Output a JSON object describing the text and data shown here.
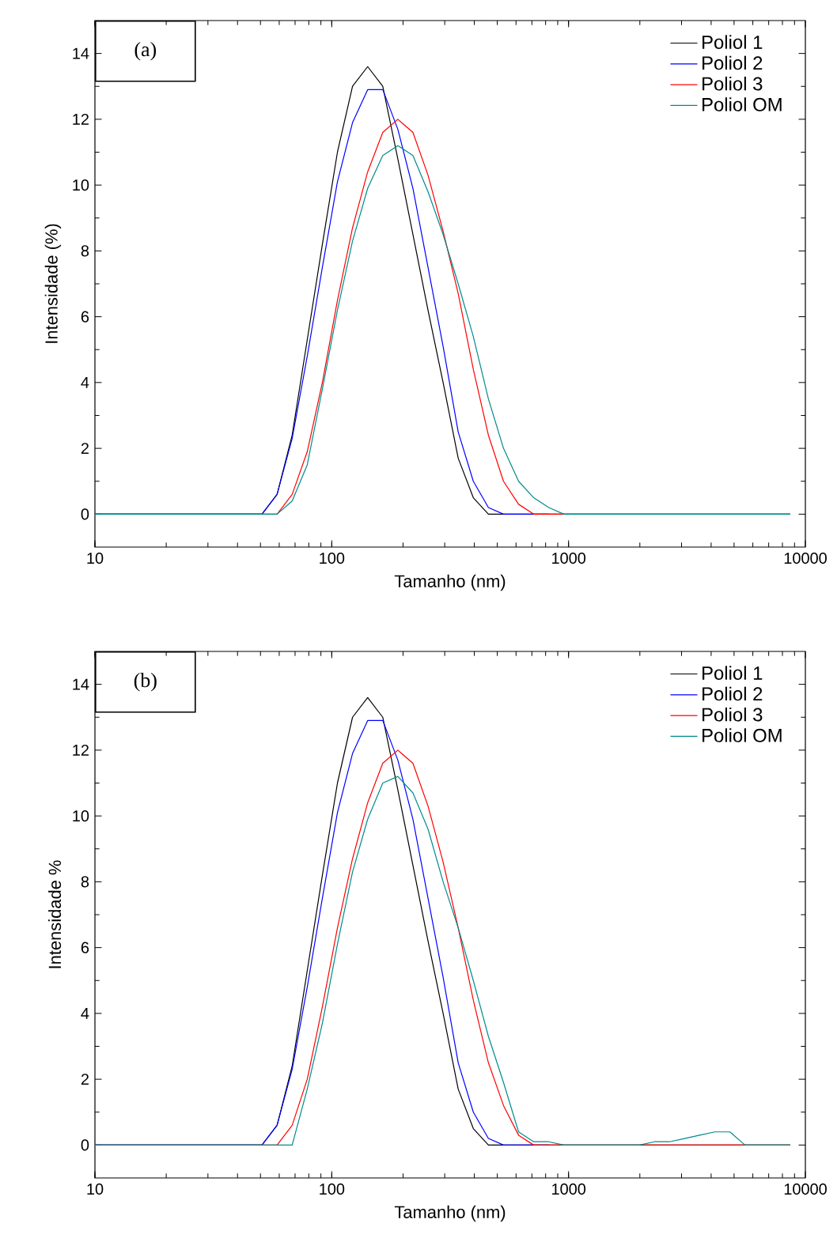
{
  "chart_data": [
    {
      "type": "line",
      "xlabel": "Tamanho (nm)",
      "ylabel": "Intensidade (%)",
      "annotations": [
        "(a)"
      ],
      "log": "x",
      "legend": "top right",
      "line_style": "solid",
      "xlim": [
        10,
        10000
      ],
      "xticks": [
        10,
        100,
        1000,
        10000
      ],
      "ylim": [
        -1,
        15
      ],
      "yticks": [
        0,
        2,
        4,
        6,
        8,
        10,
        12,
        14
      ],
      "x": [
        10,
        50.75,
        58.77,
        68.06,
        78.82,
        91.28,
        105.7,
        122.4,
        141.8,
        164.2,
        190.1,
        220.2,
        255,
        295.3,
        342,
        396.1,
        458.7,
        531.2,
        615.1,
        712.4,
        825,
        955.4,
        8635
      ],
      "series": [
        {
          "name": "Poliol 1",
          "color": "#000000",
          "values": [
            0,
            0,
            0.6,
            2.4,
            5.3,
            8.2,
            11.0,
            13.0,
            13.6,
            13.0,
            10.8,
            8.5,
            6.2,
            4.0,
            1.7,
            0.5,
            0,
            0,
            0,
            0,
            0,
            0,
            0
          ]
        },
        {
          "name": "Poliol 2",
          "color": "#0000ff",
          "values": [
            0,
            0,
            0.6,
            2.3,
            4.8,
            7.5,
            10.1,
            11.9,
            12.9,
            12.9,
            11.7,
            9.9,
            7.5,
            5.1,
            2.5,
            1.0,
            0.2,
            0,
            0,
            0,
            0,
            null,
            null
          ]
        },
        {
          "name": "Poliol 3",
          "color": "#ff0000",
          "values": [
            0,
            0,
            0,
            0.6,
            1.9,
            4.0,
            6.5,
            8.7,
            10.4,
            11.6,
            12.0,
            11.6,
            10.3,
            8.6,
            6.7,
            4.4,
            2.4,
            1.0,
            0.3,
            0,
            0,
            0,
            0
          ]
        },
        {
          "name": "Poliol OM",
          "color": "#008b8b",
          "values": [
            0,
            0,
            0,
            0.4,
            1.5,
            3.8,
            6.2,
            8.3,
            9.9,
            10.9,
            11.2,
            10.9,
            9.8,
            8.5,
            7.0,
            5.4,
            3.5,
            2.0,
            1.0,
            0.5,
            0.2,
            0,
            0
          ]
        }
      ]
    },
    {
      "type": "line",
      "xlabel": "Tamanho (nm)",
      "ylabel": "Intensidade %",
      "annotations": [
        "(b)"
      ],
      "log": "x",
      "legend": "top right",
      "line_style": "solid",
      "xlim": [
        10,
        10000
      ],
      "xticks": [
        10,
        100,
        1000,
        10000
      ],
      "ylim": [
        -1,
        15
      ],
      "yticks": [
        0,
        2,
        4,
        6,
        8,
        10,
        12,
        14
      ],
      "x": [
        10,
        50.75,
        58.77,
        68.06,
        78.82,
        91.28,
        105.7,
        122.4,
        141.8,
        164.2,
        190.1,
        220.2,
        255,
        295.3,
        342,
        396.1,
        458.7,
        531.2,
        615.1,
        712.4,
        825,
        955.4,
        1106,
        1281,
        1484,
        1718,
        1990,
        2305,
        2669,
        3091,
        3580,
        4145,
        4801,
        5560,
        8635
      ],
      "series": [
        {
          "name": "Poliol 1",
          "color": "#000000",
          "values": [
            0,
            0,
            0.6,
            2.4,
            5.3,
            8.2,
            11.0,
            13.0,
            13.6,
            13.0,
            10.8,
            8.5,
            6.2,
            4.0,
            1.7,
            0.5,
            0,
            0,
            0,
            0,
            0,
            0,
            0,
            0,
            0,
            0,
            0,
            0,
            0,
            0,
            0,
            0,
            0,
            0,
            0
          ]
        },
        {
          "name": "Poliol 2",
          "color": "#0000ff",
          "values": [
            0,
            0,
            0.6,
            2.3,
            4.8,
            7.5,
            10.1,
            11.9,
            12.9,
            12.9,
            11.7,
            9.9,
            7.5,
            5.1,
            2.5,
            1.0,
            0.2,
            0,
            0,
            0,
            0,
            null,
            null,
            null,
            null,
            null,
            null,
            null,
            null,
            null,
            null,
            null,
            null,
            null,
            null
          ]
        },
        {
          "name": "Poliol 3",
          "color": "#ff0000",
          "values": [
            0,
            0,
            0,
            0.6,
            2.0,
            4.2,
            6.6,
            8.7,
            10.4,
            11.6,
            12.0,
            11.6,
            10.3,
            8.6,
            6.6,
            4.4,
            2.5,
            1.2,
            0.3,
            0,
            0,
            0,
            0,
            0,
            0,
            0,
            0,
            0,
            0,
            0,
            0,
            0,
            0,
            0,
            0
          ]
        },
        {
          "name": "Poliol OM",
          "color": "#008b8b",
          "values": [
            0,
            0,
            0,
            0,
            1.7,
            3.7,
            6.1,
            8.3,
            9.9,
            11.0,
            11.2,
            10.7,
            9.6,
            8.0,
            6.6,
            5.0,
            3.3,
            1.9,
            0.4,
            0.1,
            0.1,
            0,
            0,
            0,
            0,
            0,
            0,
            0.1,
            0.1,
            0.2,
            0.3,
            0.4,
            0.4,
            0,
            0
          ]
        }
      ]
    }
  ]
}
